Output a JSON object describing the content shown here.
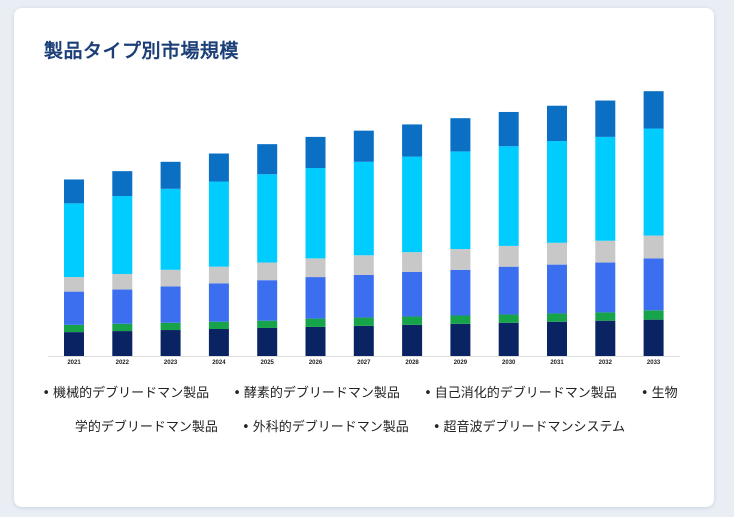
{
  "page": {
    "title": "製品タイプ別市場規模"
  },
  "chart_data": {
    "type": "bar",
    "stacked": true,
    "title": "製品タイプ別市場規模",
    "xlabel": "",
    "ylabel": "",
    "grid": false,
    "legend_position": "bottom",
    "categories": [
      "2021",
      "2022",
      "2023",
      "2024",
      "2025",
      "2026",
      "2027",
      "2028",
      "2029",
      "2030",
      "2031",
      "2032",
      "2033"
    ],
    "series": [
      {
        "name": "機械的デブリードマン製品",
        "color": "#0a2463",
        "values": [
          23,
          24,
          25,
          26,
          27,
          28,
          29,
          30,
          31,
          32,
          33,
          34,
          35
        ]
      },
      {
        "name": "酵素的デブリードマン製品",
        "color": "#17a34a",
        "values": [
          7,
          7,
          7,
          7,
          7,
          8,
          8,
          8,
          8,
          8,
          8,
          8,
          9
        ]
      },
      {
        "name": "自己消化的デブリードマン製品",
        "color": "#3b6ff0",
        "values": [
          32,
          33,
          35,
          37,
          39,
          40,
          41,
          43,
          44,
          46,
          47,
          48,
          50
        ]
      },
      {
        "name": "生物学的デブリードマン製品",
        "color": "#c8c8c8",
        "values": [
          14,
          15,
          16,
          16,
          17,
          18,
          19,
          19,
          20,
          20,
          21,
          21,
          22
        ]
      },
      {
        "name": "外科的デブリードマン製品",
        "color": "#00ccff",
        "values": [
          71,
          75,
          78,
          82,
          85,
          87,
          90,
          92,
          94,
          96,
          98,
          100,
          103
        ]
      },
      {
        "name": "超音波デブリードマンシステム",
        "color": "#0b6fc4",
        "values": [
          23,
          24,
          26,
          27,
          29,
          30,
          30,
          31,
          32,
          33,
          34,
          35,
          36
        ]
      }
    ],
    "ylim": [
      0,
      260
    ]
  }
}
